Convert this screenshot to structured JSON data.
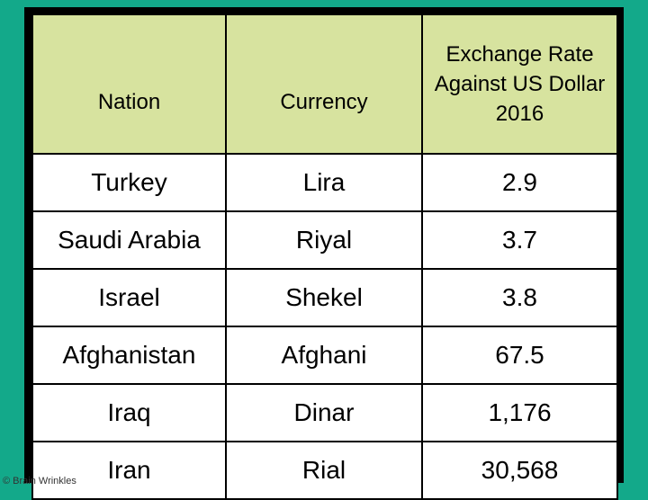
{
  "table": {
    "header": [
      "Nation",
      "Currency",
      "Exchange Rate Against US Dollar 2016"
    ],
    "rows": [
      [
        "Turkey",
        "Lira",
        "2.9"
      ],
      [
        "Saudi Arabia",
        "Riyal",
        "3.7"
      ],
      [
        "Israel",
        "Shekel",
        "3.8"
      ],
      [
        "Afghanistan",
        "Afghani",
        "67.5"
      ],
      [
        "Iraq",
        "Dinar",
        "1,176"
      ],
      [
        "Iran",
        "Rial",
        "30,568"
      ]
    ]
  },
  "footer": {
    "copyright": "© Brain Wrinkles"
  }
}
